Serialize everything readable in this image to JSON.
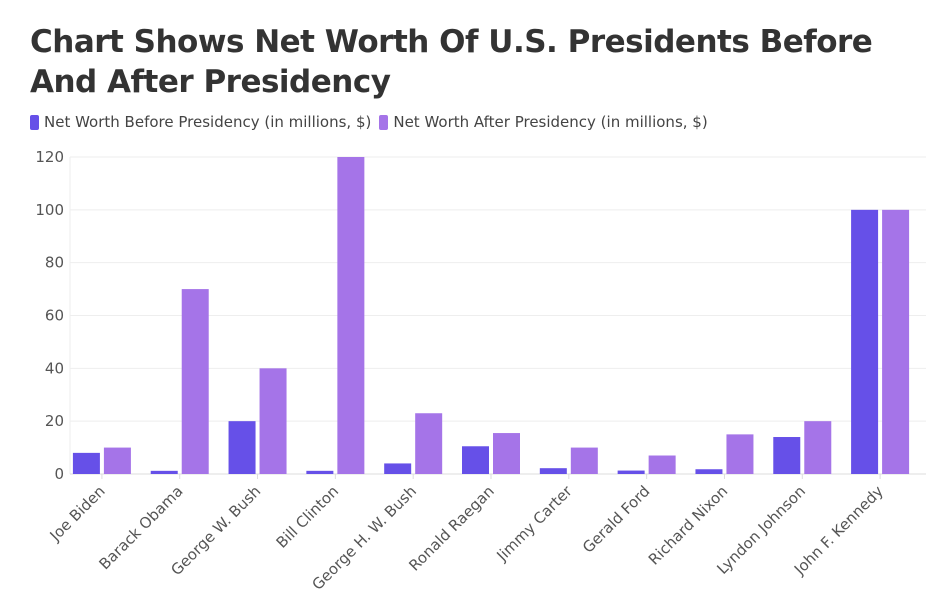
{
  "chart_data": {
    "type": "bar",
    "title": "Chart Shows Net Worth Of U.S. Presidents Before And After Presidency",
    "categories": [
      "Joe Biden",
      "Barack Obama",
      "George W. Bush",
      "Bill Clinton",
      "George H. W. Bush",
      "Ronald Raegan",
      "Jimmy Carter",
      "Gerald Ford",
      "Richard Nixon",
      "Lyndon Johnson",
      "John F. Kennedy"
    ],
    "series": [
      {
        "name": "Net Worth Before Presidency (in millions, $)",
        "color": "#6650E8",
        "values": [
          8,
          1.2,
          20,
          1.2,
          4,
          10.5,
          2.2,
          1.3,
          1.8,
          14,
          100
        ]
      },
      {
        "name": "Net Worth After Presidency (in millions, $)",
        "color": "#A574E8",
        "values": [
          10,
          70,
          40,
          120,
          23,
          15.5,
          10,
          7,
          15,
          20,
          100
        ]
      }
    ],
    "yticks": [
      0,
      20,
      40,
      60,
      80,
      100,
      120
    ],
    "ylim": [
      0,
      120
    ],
    "grid": true,
    "legend": "top-left",
    "xlabel": "",
    "ylabel": ""
  }
}
